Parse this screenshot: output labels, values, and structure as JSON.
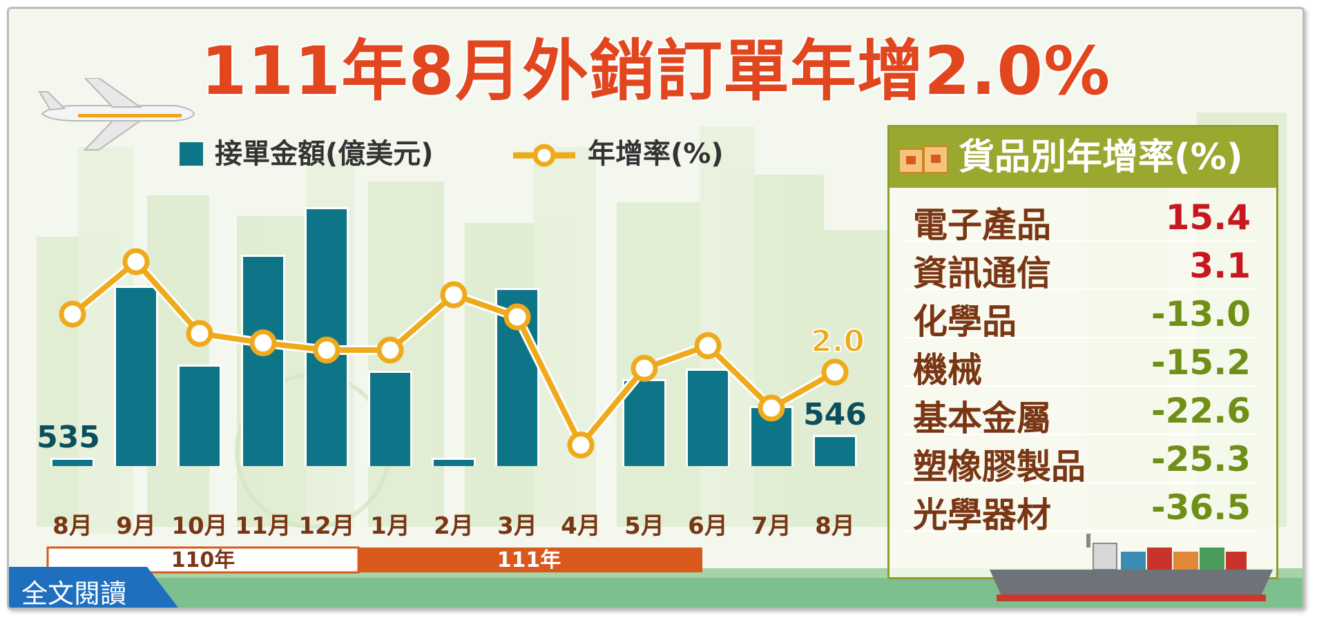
{
  "title": "111年8月外銷訂單年增2.0%",
  "legend": {
    "bar_label": "接單金額(億美元)",
    "line_label": "年增率(%)"
  },
  "chart_data": {
    "type": "bar",
    "categories": [
      "8月",
      "9月",
      "10月",
      "11月",
      "12月",
      "1月",
      "2月",
      "3月",
      "4月",
      "5月",
      "6月",
      "7月",
      "8月"
    ],
    "series": [
      {
        "name": "接單金額(億美元)",
        "type": "bar",
        "values": [
          535,
          618,
          580,
          633,
          656,
          577,
          535,
          617,
          530,
          573,
          578,
          560,
          546
        ]
      },
      {
        "name": "年增率(%)",
        "type": "line",
        "values": [
          12.5,
          22.0,
          9.0,
          7.3,
          6.0,
          6.0,
          16.0,
          12.0,
          -11.2,
          2.7,
          6.8,
          -4.5,
          2.0
        ]
      }
    ],
    "labeled_points": {
      "bar_first": "535",
      "bar_last": "546",
      "line_last": "2.0"
    },
    "year_groups": [
      {
        "label": "110年",
        "span": 5
      },
      {
        "label": "111年",
        "span": 8
      }
    ],
    "colors": {
      "bar": "#0e7487",
      "line": "#efaa1c",
      "marker_fill": "#ffffff",
      "year_110_border": "#d9591c",
      "year_111_fill": "#d9591c"
    }
  },
  "panel": {
    "title": "貨品別年增率(%)",
    "rows": [
      {
        "name": "電子產品",
        "value": "15.4",
        "color": "#c8171f"
      },
      {
        "name": "資訊通信",
        "value": "3.1",
        "color": "#c8171f"
      },
      {
        "name": "化學品",
        "value": "-13.0",
        "color": "#6f8f16"
      },
      {
        "name": "機械",
        "value": "-15.2",
        "color": "#6f8f16"
      },
      {
        "name": "基本金屬",
        "value": "-22.6",
        "color": "#6f8f16"
      },
      {
        "name": "塑橡膠製品",
        "value": "-25.3",
        "color": "#6f8f16"
      },
      {
        "name": "光學器材",
        "value": "-36.5",
        "color": "#6f8f16"
      }
    ]
  },
  "read_button": {
    "label": "全文閱讀"
  }
}
